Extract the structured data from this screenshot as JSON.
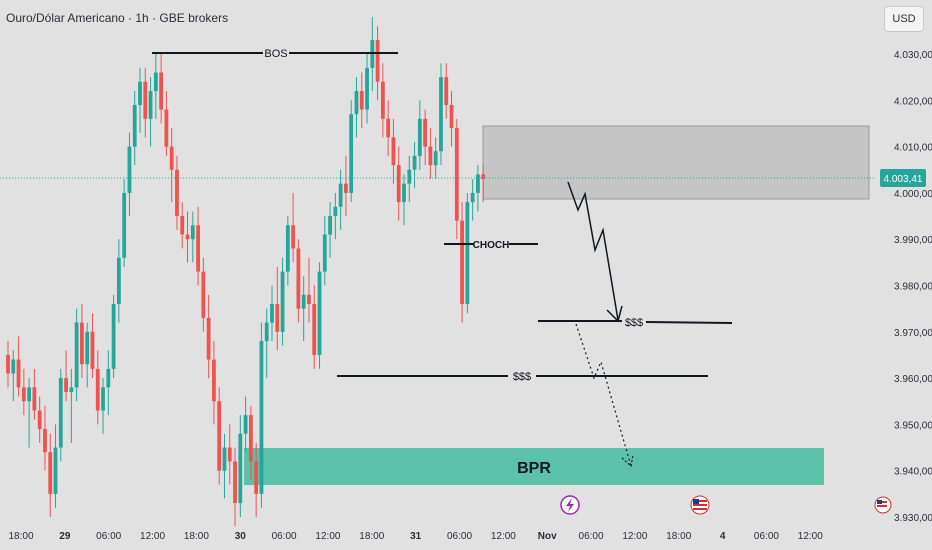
{
  "header": {
    "title": "Ouro/Dólar Americano · 1h · GBE brokers",
    "currency_label": "USD"
  },
  "price_axis": {
    "ticks": [
      "4.030,00",
      "4.020,00",
      "4.010,00",
      "4.000,00",
      "3.990,00",
      "3.980,00",
      "3.970,00",
      "3.960,00",
      "3.950,00",
      "3.940,00",
      "3.930,00"
    ],
    "current_price": "4.003,41"
  },
  "time_axis": {
    "ticks": [
      "18:00",
      "29",
      "06:00",
      "12:00",
      "18:00",
      "30",
      "06:00",
      "12:00",
      "18:00",
      "31",
      "06:00",
      "12:00",
      "Nov",
      "06:00",
      "12:00",
      "18:00",
      "4",
      "06:00",
      "12:00"
    ]
  },
  "annotations": {
    "bos": "BOS",
    "choch": "CHOCH",
    "liquidity_upper": "$$$",
    "liquidity_lower": "$$$",
    "bpr": "BPR"
  },
  "colors": {
    "bullish": "#26a69a",
    "bearish": "#ef5350",
    "background": "#e1e1e1",
    "bpr_zone": "#4dbfa3",
    "order_block": "#b9b9b9",
    "current_price": "#26a69a"
  },
  "icons": [
    "lightning-event-icon",
    "us-flag-event-icon",
    "us-flag-event-icon"
  ],
  "chart_data": {
    "type": "candlestick",
    "symbol": "XAUUSD",
    "interval": "1h",
    "ylim": [
      3928,
      4038
    ],
    "candles": [
      [
        3965,
        3968,
        3958,
        3961
      ],
      [
        3961,
        3966,
        3955,
        3964
      ],
      [
        3964,
        3969,
        3956,
        3958
      ],
      [
        3958,
        3962,
        3952,
        3955
      ],
      [
        3955,
        3960,
        3945,
        3958
      ],
      [
        3958,
        3962,
        3951,
        3953
      ],
      [
        3953,
        3956,
        3946,
        3949
      ],
      [
        3949,
        3954,
        3940,
        3944
      ],
      [
        3944,
        3948,
        3930,
        3935
      ],
      [
        3935,
        3950,
        3932,
        3945
      ],
      [
        3945,
        3962,
        3942,
        3960
      ],
      [
        3960,
        3966,
        3955,
        3957
      ],
      [
        3957,
        3962,
        3946,
        3958
      ],
      [
        3958,
        3975,
        3955,
        3972
      ],
      [
        3972,
        3976,
        3960,
        3963
      ],
      [
        3963,
        3972,
        3958,
        3970
      ],
      [
        3970,
        3974,
        3960,
        3962
      ],
      [
        3962,
        3966,
        3950,
        3953
      ],
      [
        3953,
        3960,
        3948,
        3958
      ],
      [
        3958,
        3966,
        3952,
        3962
      ],
      [
        3962,
        3978,
        3960,
        3976
      ],
      [
        3976,
        3990,
        3972,
        3986
      ],
      [
        3986,
        4003,
        3984,
        4000
      ],
      [
        4000,
        4013,
        3995,
        4010
      ],
      [
        4010,
        4022,
        4006,
        4019
      ],
      [
        4019,
        4027,
        4013,
        4024
      ],
      [
        4024,
        4027,
        4012,
        4016
      ],
      [
        4016,
        4025,
        4010,
        4022
      ],
      [
        4022,
        4030,
        4016,
        4026
      ],
      [
        4026,
        4030,
        4015,
        4018
      ],
      [
        4018,
        4022,
        4008,
        4010
      ],
      [
        4010,
        4014,
        3998,
        4005
      ],
      [
        4005,
        4008,
        3992,
        3995
      ],
      [
        3995,
        3998,
        3988,
        3991
      ],
      [
        3991,
        3996,
        3985,
        3990
      ],
      [
        3990,
        3996,
        3985,
        3993
      ],
      [
        3993,
        3997,
        3980,
        3983
      ],
      [
        3983,
        3986,
        3970,
        3973
      ],
      [
        3973,
        3978,
        3960,
        3964
      ],
      [
        3964,
        3968,
        3950,
        3955
      ],
      [
        3955,
        3958,
        3937,
        3940
      ],
      [
        3940,
        3948,
        3934,
        3945
      ],
      [
        3945,
        3950,
        3937,
        3942
      ],
      [
        3942,
        3945,
        3928,
        3933
      ],
      [
        3933,
        3952,
        3930,
        3948
      ],
      [
        3948,
        3956,
        3944,
        3952
      ],
      [
        3952,
        3954,
        3938,
        3942
      ],
      [
        3942,
        3946,
        3930,
        3935
      ],
      [
        3935,
        3972,
        3932,
        3968
      ],
      [
        3968,
        3975,
        3960,
        3972
      ],
      [
        3972,
        3980,
        3968,
        3976
      ],
      [
        3976,
        3984,
        3966,
        3970
      ],
      [
        3970,
        3986,
        3967,
        3983
      ],
      [
        3983,
        3995,
        3980,
        3993
      ],
      [
        3993,
        4000,
        3985,
        3988
      ],
      [
        3988,
        3990,
        3972,
        3975
      ],
      [
        3975,
        3982,
        3968,
        3978
      ],
      [
        3978,
        3986,
        3972,
        3976
      ],
      [
        3976,
        3980,
        3962,
        3965
      ],
      [
        3965,
        3985,
        3962,
        3983
      ],
      [
        3983,
        3995,
        3980,
        3991
      ],
      [
        3991,
        3998,
        3986,
        3995
      ],
      [
        3995,
        4000,
        3990,
        3997
      ],
      [
        3997,
        4005,
        3992,
        4002
      ],
      [
        4002,
        4008,
        3995,
        4000
      ],
      [
        4000,
        4020,
        3998,
        4017
      ],
      [
        4017,
        4025,
        4012,
        4022
      ],
      [
        4022,
        4026,
        4014,
        4018
      ],
      [
        4018,
        4030,
        4015,
        4027
      ],
      [
        4027,
        4038,
        4022,
        4033
      ],
      [
        4033,
        4036,
        4020,
        4024
      ],
      [
        4024,
        4028,
        4012,
        4016
      ],
      [
        4016,
        4020,
        4008,
        4012
      ],
      [
        4012,
        4016,
        4002,
        4006
      ],
      [
        4006,
        4010,
        3994,
        3998
      ],
      [
        3998,
        4004,
        3993,
        4002
      ],
      [
        4002,
        4008,
        3998,
        4005
      ],
      [
        4005,
        4011,
        4001,
        4008
      ],
      [
        4008,
        4020,
        4005,
        4016
      ],
      [
        4016,
        4018,
        4006,
        4010
      ],
      [
        4010,
        4014,
        4003,
        4006
      ],
      [
        4006,
        4012,
        4003,
        4009
      ],
      [
        4009,
        4028,
        4006,
        4025
      ],
      [
        4025,
        4028,
        4016,
        4019
      ],
      [
        4019,
        4022,
        4010,
        4014
      ],
      [
        4014,
        4016,
        3990,
        3994
      ],
      [
        3994,
        3998,
        3972,
        3976
      ],
      [
        3976,
        4000,
        3974,
        3998
      ],
      [
        3998,
        4003,
        3994,
        4000
      ],
      [
        4000,
        4006,
        3996,
        4004
      ],
      [
        4004,
        4006,
        3998,
        4003
      ]
    ]
  }
}
